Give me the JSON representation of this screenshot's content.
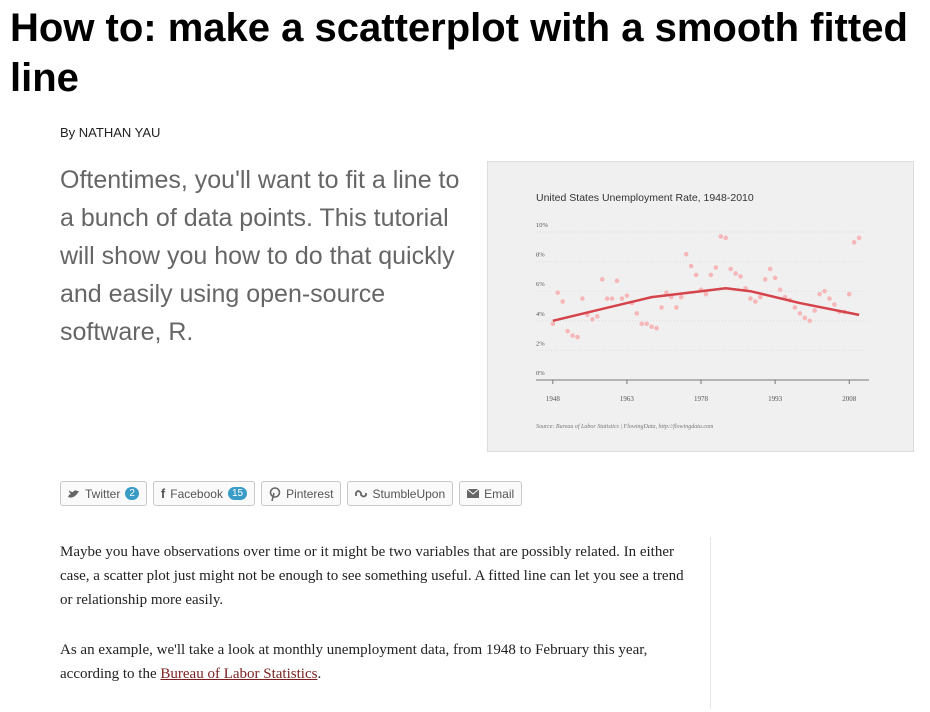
{
  "header": {
    "title": "How to: make a scatterplot with a smooth fitted line",
    "byline": "By NATHAN YAU"
  },
  "lead": "Oftentimes, you'll want to fit a line to a bunch of data points. This tutorial will show you how to do that quickly and easily using open-source software, R.",
  "chart_data": {
    "type": "scatter",
    "title": "United States Unemployment Rate, 1948-2010",
    "source": "Source: Bureau of Labor Statistics | FlowingData, http://flowingdata.com",
    "color": "#f6b7b9",
    "x": [
      1948,
      1949,
      1950,
      1951,
      1952,
      1953,
      1954,
      1955,
      1956,
      1957,
      1958,
      1959,
      1960,
      1961,
      1962,
      1963,
      1964,
      1965,
      1966,
      1967,
      1968,
      1969,
      1970,
      1971,
      1972,
      1973,
      1974,
      1975,
      1976,
      1977,
      1978,
      1979,
      1980,
      1981,
      1982,
      1983,
      1984,
      1985,
      1986,
      1987,
      1988,
      1989,
      1990,
      1991,
      1992,
      1993,
      1994,
      1995,
      1996,
      1997,
      1998,
      1999,
      2000,
      2001,
      2002,
      2003,
      2004,
      2005,
      2006,
      2007,
      2008,
      2009,
      2010
    ],
    "values": [
      3.8,
      5.9,
      5.3,
      3.3,
      3.0,
      2.9,
      5.5,
      4.4,
      4.1,
      4.3,
      6.8,
      5.5,
      5.5,
      6.7,
      5.5,
      5.7,
      5.2,
      4.5,
      3.8,
      3.8,
      3.6,
      3.5,
      4.9,
      5.9,
      5.6,
      4.9,
      5.6,
      8.5,
      7.7,
      7.1,
      6.1,
      5.8,
      7.1,
      7.6,
      9.7,
      9.6,
      7.5,
      7.2,
      7.0,
      6.2,
      5.5,
      5.3,
      5.6,
      6.8,
      7.5,
      6.9,
      6.1,
      5.6,
      5.4,
      4.9,
      4.5,
      4.2,
      4.0,
      4.7,
      5.8,
      6.0,
      5.5,
      5.1,
      4.6,
      4.6,
      5.8,
      9.3,
      9.6
    ],
    "fit": {
      "color": "#d5434b",
      "x": [
        1948,
        1958,
        1968,
        1978,
        1983,
        1988,
        1998,
        2010
      ],
      "values": [
        4.0,
        4.8,
        5.6,
        6.0,
        6.2,
        6.0,
        5.2,
        4.4
      ]
    },
    "xlim": [
      1945,
      2012
    ],
    "ylim": [
      0,
      10
    ],
    "xticks": [
      1948,
      1963,
      1978,
      1993,
      2008
    ],
    "yticks": [
      {
        "value": 0,
        "label": "0%"
      },
      {
        "value": 2,
        "label": "2%"
      },
      {
        "value": 4,
        "label": "4%"
      },
      {
        "value": 6,
        "label": "6%"
      },
      {
        "value": 8,
        "label": "8%"
      },
      {
        "value": 10,
        "label": "10%"
      }
    ],
    "grid": true
  },
  "share": [
    {
      "label": "Twitter",
      "count": 2
    },
    {
      "label": "Facebook",
      "count": 15
    },
    {
      "label": "Pinterest"
    },
    {
      "label": "StumbleUpon"
    },
    {
      "label": "Email"
    }
  ],
  "body": [
    "Maybe you have observations over time or it might be two variables that are possibly related. In either case, a scatter plot just might not be enough to see something useful. A fitted line can let you see a trend or relationship more easily.",
    {
      "before": "As an example, we'll take a look at monthly unemployment data, from 1948 to February this year, according to the ",
      "link": "Bureau of Labor Statistics",
      "after": "."
    }
  ]
}
